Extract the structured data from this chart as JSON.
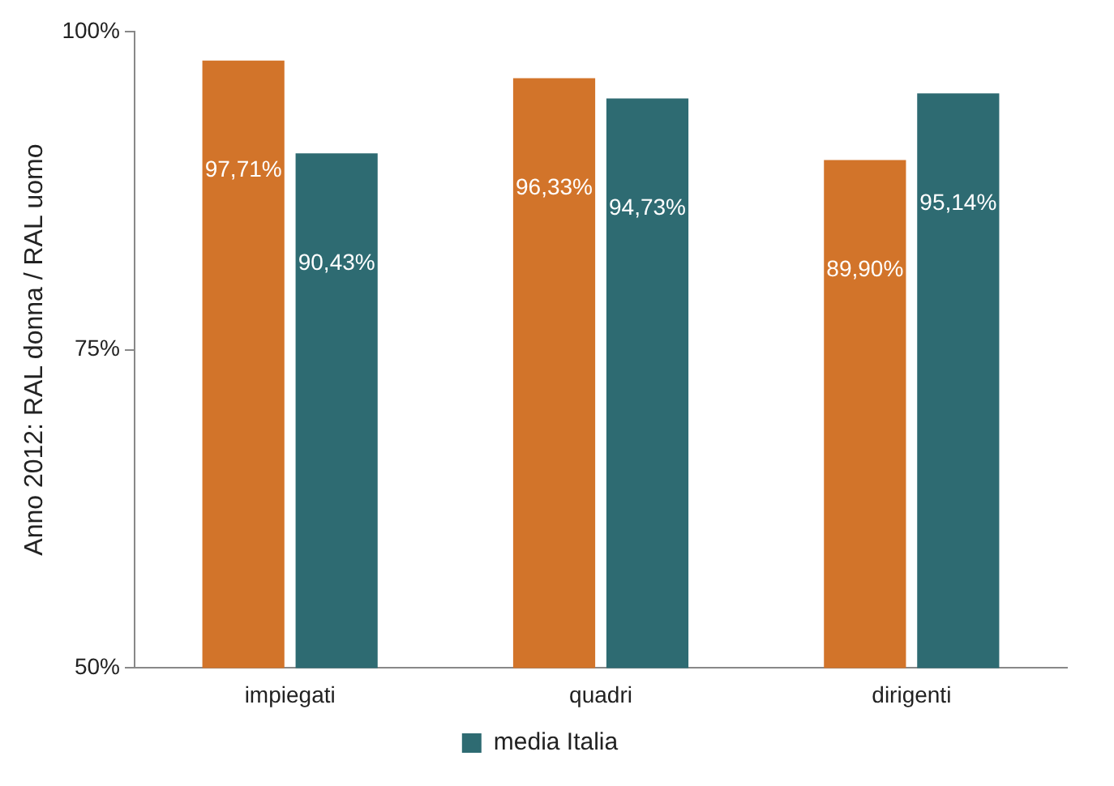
{
  "chart_data": {
    "type": "bar",
    "ylabel": "Anno 2012: RAL donna / RAL uomo",
    "categories": [
      "impiegati",
      "quadri",
      "dirigenti"
    ],
    "series": [
      {
        "color": "#d2742a",
        "values": [
          97.71,
          96.33,
          89.9
        ],
        "value_labels": [
          "97,71%",
          "96,33%",
          "89,90%"
        ]
      },
      {
        "name": "media Italia",
        "color": "#2e6b72",
        "values": [
          90.43,
          94.73,
          95.14
        ],
        "value_labels": [
          "90,43%",
          "94,73%",
          "95,14%"
        ]
      }
    ],
    "ylim": [
      50,
      100
    ],
    "yticks": [
      {
        "value": 50,
        "label": "50%"
      },
      {
        "value": 75,
        "label": "75%"
      },
      {
        "value": 100,
        "label": "100%"
      }
    ],
    "grid": false,
    "legend": "bottom"
  }
}
